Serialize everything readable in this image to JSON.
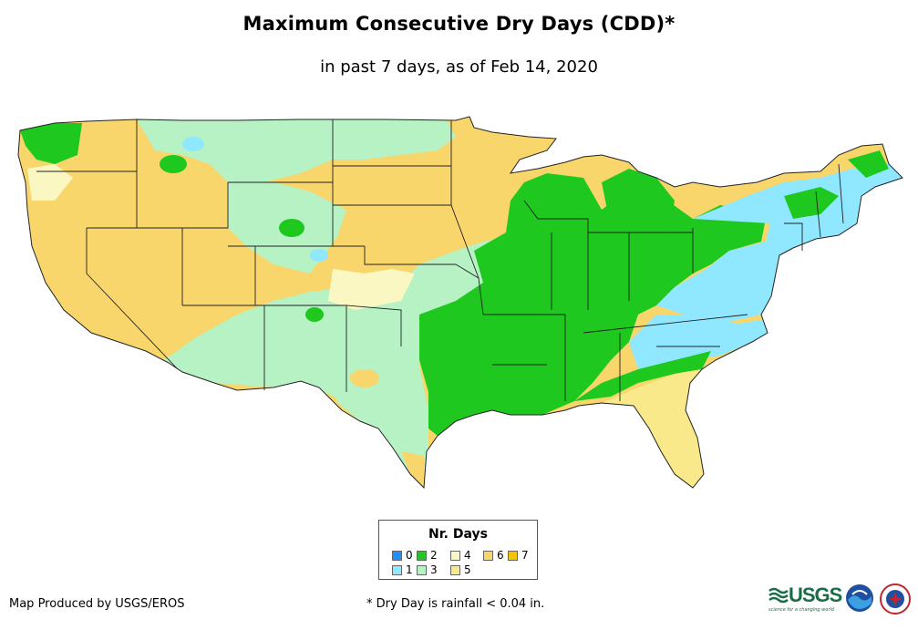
{
  "title": "Maximum Consecutive Dry Days (CDD)*",
  "subtitle": "in past 7 days, as of Feb 14, 2020",
  "legend": {
    "title": "Nr. Days",
    "items": [
      {
        "label": "0",
        "color": "#1e90ff"
      },
      {
        "label": "1",
        "color": "#8fe8ff"
      },
      {
        "label": "2",
        "color": "#1ec81e"
      },
      {
        "label": "3",
        "color": "#b6f2c4"
      },
      {
        "label": "4",
        "color": "#fbf7c2"
      },
      {
        "label": "5",
        "color": "#fae98a"
      },
      {
        "label": "6",
        "color": "#f8d66c"
      },
      {
        "label": "7",
        "color": "#f6c400"
      }
    ]
  },
  "credit": "Map Produced by USGS/EROS",
  "footnote": "* Dry Day is rainfall < 0.04 in.",
  "logos": {
    "usgs": "USGS",
    "usgs_tagline": "science for a changing world",
    "noaa": "noaa-logo",
    "nws": "nws-logo"
  },
  "map": {
    "region": "Contiguous United States",
    "regions_by_dry_days": [
      {
        "area": "West Coast, Great Basin, Southwest",
        "days": 6
      },
      {
        "area": "Northern Plains",
        "days": 6
      },
      {
        "area": "Central/Southern Plains",
        "days": 3
      },
      {
        "area": "Mississippi & Ohio Valleys, Great Lakes",
        "days": 2
      },
      {
        "area": "Appalachians, Mid-Atlantic, New England",
        "days": 1
      },
      {
        "area": "Southeast coast, Florida",
        "days": 5
      }
    ]
  }
}
